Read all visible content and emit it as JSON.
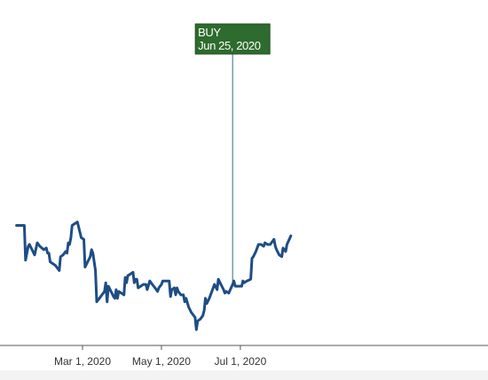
{
  "chart_data": {
    "type": "line",
    "title": "",
    "xlabel": "",
    "ylabel": "",
    "x_ticks": [
      "Mar 1, 2020",
      "May 1, 2020",
      "Jul 1, 2020"
    ],
    "ylim": [
      0,
      100
    ],
    "series": [
      {
        "name": "",
        "points": [
          [
            "2020-01-10",
            62
          ],
          [
            "2020-01-16",
            62
          ],
          [
            "2020-01-17",
            42
          ],
          [
            "2020-01-19",
            50
          ],
          [
            "2020-01-20",
            51
          ],
          [
            "2020-01-22",
            48
          ],
          [
            "2020-01-24",
            45
          ],
          [
            "2020-01-26",
            52
          ],
          [
            "2020-01-28",
            50
          ],
          [
            "2020-01-31",
            48
          ],
          [
            "2020-02-02",
            49
          ],
          [
            "2020-02-03",
            46
          ],
          [
            "2020-02-04",
            46
          ],
          [
            "2020-02-05",
            41
          ],
          [
            "2020-02-07",
            40
          ],
          [
            "2020-02-09",
            39
          ],
          [
            "2020-02-11",
            37
          ],
          [
            "2020-02-12",
            36
          ],
          [
            "2020-02-13",
            44
          ],
          [
            "2020-02-15",
            45
          ],
          [
            "2020-02-17",
            47
          ],
          [
            "2020-02-18",
            46
          ],
          [
            "2020-02-19",
            52
          ],
          [
            "2020-02-20",
            51
          ],
          [
            "2020-02-21",
            55
          ],
          [
            "2020-02-22",
            62
          ],
          [
            "2020-02-24",
            63
          ],
          [
            "2020-02-26",
            64
          ],
          [
            "2020-02-28",
            58
          ],
          [
            "2020-02-29",
            55
          ],
          [
            "2020-03-02",
            54
          ],
          [
            "2020-03-03",
            38
          ],
          [
            "2020-03-05",
            41
          ],
          [
            "2020-03-07",
            44
          ],
          [
            "2020-03-08",
            48
          ],
          [
            "2020-03-09",
            46
          ],
          [
            "2020-03-11",
            36
          ],
          [
            "2020-03-12",
            18
          ],
          [
            "2020-03-14",
            20
          ],
          [
            "2020-03-16",
            22
          ],
          [
            "2020-03-18",
            24
          ],
          [
            "2020-03-19",
            29
          ],
          [
            "2020-03-20",
            18
          ],
          [
            "2020-03-21",
            27
          ],
          [
            "2020-03-23",
            24
          ],
          [
            "2020-03-25",
            21
          ],
          [
            "2020-03-26",
            20
          ],
          [
            "2020-03-27",
            25
          ],
          [
            "2020-03-28",
            20
          ],
          [
            "2020-03-29",
            24
          ],
          [
            "2020-03-31",
            23
          ],
          [
            "2020-04-02",
            22
          ],
          [
            "2020-04-03",
            32
          ],
          [
            "2020-04-04",
            29
          ],
          [
            "2020-04-05",
            33
          ],
          [
            "2020-04-07",
            34
          ],
          [
            "2020-04-09",
            35
          ],
          [
            "2020-04-10",
            29
          ],
          [
            "2020-04-11",
            31
          ],
          [
            "2020-04-12",
            31
          ],
          [
            "2020-04-13",
            26
          ],
          [
            "2020-04-15",
            27
          ],
          [
            "2020-04-17",
            28
          ],
          [
            "2020-04-19",
            28
          ],
          [
            "2020-04-20",
            25
          ],
          [
            "2020-04-22",
            30
          ],
          [
            "2020-04-24",
            28
          ],
          [
            "2020-04-26",
            26
          ],
          [
            "2020-04-28",
            24
          ],
          [
            "2020-04-29",
            26
          ],
          [
            "2020-05-01",
            28
          ],
          [
            "2020-05-02",
            30
          ],
          [
            "2020-05-03",
            30
          ],
          [
            "2020-05-07",
            30
          ],
          [
            "2020-05-08",
            21
          ],
          [
            "2020-05-09",
            25
          ],
          [
            "2020-05-11",
            26
          ],
          [
            "2020-05-12",
            22
          ],
          [
            "2020-05-13",
            26
          ],
          [
            "2020-05-14",
            24
          ],
          [
            "2020-05-16",
            22
          ],
          [
            "2020-05-18",
            22
          ],
          [
            "2020-05-19",
            18
          ],
          [
            "2020-05-20",
            20
          ],
          [
            "2020-05-22",
            15
          ],
          [
            "2020-05-24",
            12
          ],
          [
            "2020-05-26",
            10
          ],
          [
            "2020-05-27",
            9
          ],
          [
            "2020-05-28",
            2
          ],
          [
            "2020-05-29",
            7
          ],
          [
            "2020-05-31",
            8
          ],
          [
            "2020-06-02",
            10
          ],
          [
            "2020-06-03",
            13
          ],
          [
            "2020-06-04",
            20
          ],
          [
            "2020-06-05",
            17
          ],
          [
            "2020-06-07",
            20
          ],
          [
            "2020-06-09",
            24
          ],
          [
            "2020-06-11",
            28
          ],
          [
            "2020-06-13",
            25
          ],
          [
            "2020-06-14",
            31
          ],
          [
            "2020-06-16",
            28
          ],
          [
            "2020-06-18",
            25
          ],
          [
            "2020-06-19",
            23
          ],
          [
            "2020-06-20",
            24
          ],
          [
            "2020-06-22",
            23
          ],
          [
            "2020-06-25",
            28
          ],
          [
            "2020-06-26",
            30
          ],
          [
            "2020-06-27",
            27
          ],
          [
            "2020-07-02",
            27
          ],
          [
            "2020-07-03",
            30
          ],
          [
            "2020-07-04",
            29
          ],
          [
            "2020-07-06",
            30
          ],
          [
            "2020-07-09",
            31
          ],
          [
            "2020-07-10",
            43
          ],
          [
            "2020-07-11",
            44
          ],
          [
            "2020-07-13",
            47
          ],
          [
            "2020-07-15",
            51
          ],
          [
            "2020-07-17",
            51
          ],
          [
            "2020-07-19",
            50
          ],
          [
            "2020-07-20",
            52
          ],
          [
            "2020-07-22",
            51
          ],
          [
            "2020-07-24",
            51
          ],
          [
            "2020-07-25",
            52
          ],
          [
            "2020-07-27",
            54
          ],
          [
            "2020-07-28",
            50
          ],
          [
            "2020-07-29",
            48
          ],
          [
            "2020-07-31",
            45
          ],
          [
            "2020-08-02",
            44
          ],
          [
            "2020-08-03",
            49
          ],
          [
            "2020-08-05",
            47
          ],
          [
            "2020-08-06",
            51
          ],
          [
            "2020-08-09",
            56
          ]
        ]
      }
    ],
    "markers": [
      {
        "label": "BUY",
        "date_label": "Jun 25, 2020",
        "x": "2020-06-25",
        "color": "#2e6b2e"
      }
    ],
    "colors": {
      "line": "#1e4d86",
      "axis": "#555555",
      "background": "#ffffff"
    }
  }
}
